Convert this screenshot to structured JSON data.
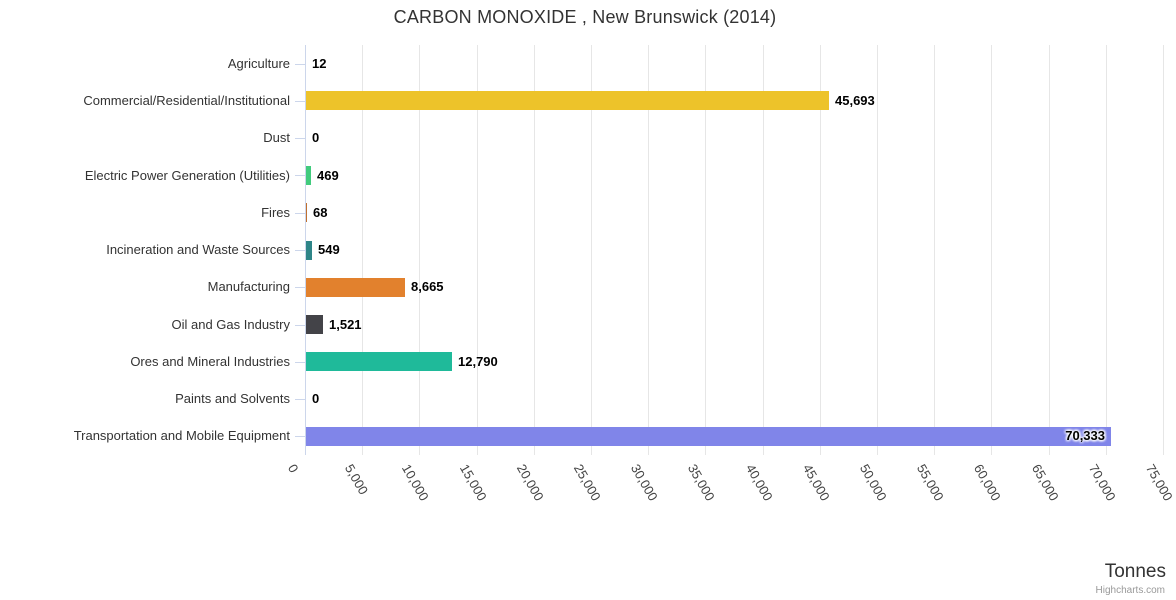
{
  "credit": "Highcharts.com",
  "colors": {
    "grid": "#e6e6e6",
    "axis": "#ccd6eb",
    "text": "#333333",
    "credit": "#999999"
  },
  "chart_data": {
    "type": "bar",
    "title": "CARBON MONOXIDE , New Brunswick (2014)",
    "grid": true,
    "legend": false,
    "value_axis": {
      "title": "Tonnes",
      "min": 0,
      "max": 75000,
      "tick_interval": 5000,
      "tick_labels": [
        "0",
        "5,000",
        "10,000",
        "15,000",
        "20,000",
        "25,000",
        "30,000",
        "35,000",
        "40,000",
        "45,000",
        "50,000",
        "55,000",
        "60,000",
        "65,000",
        "70,000",
        "75,000"
      ]
    },
    "categories": [
      "Agriculture",
      "Commercial/Residential/Institutional",
      "Dust",
      "Electric Power Generation (Utilities)",
      "Fires",
      "Incineration and Waste Sources",
      "Manufacturing",
      "Oil and Gas Industry",
      "Ores and Mineral Industries",
      "Paints and Solvents",
      "Transportation and Mobile Equipment"
    ],
    "values": [
      12,
      45693,
      0,
      469,
      68,
      549,
      8665,
      1521,
      12790,
      0,
      70333
    ],
    "points": [
      {
        "category": "Agriculture",
        "value": 12,
        "label": "12",
        "color": null
      },
      {
        "category": "Commercial/Residential/Institutional",
        "value": 45693,
        "label": "45,693",
        "color": "#EDC32A"
      },
      {
        "category": "Dust",
        "value": 0,
        "label": "0",
        "color": null
      },
      {
        "category": "Electric Power Generation (Utilities)",
        "value": 469,
        "label": "469",
        "color": "#41CB7D"
      },
      {
        "category": "Fires",
        "value": 68,
        "label": "68",
        "color": "#C0702F"
      },
      {
        "category": "Incineration and Waste Sources",
        "value": 549,
        "label": "549",
        "color": "#2E8588"
      },
      {
        "category": "Manufacturing",
        "value": 8665,
        "label": "8,665",
        "color": "#E2812D"
      },
      {
        "category": "Oil and Gas Industry",
        "value": 1521,
        "label": "1,521",
        "color": "#434348"
      },
      {
        "category": "Ores and Mineral Industries",
        "value": 12790,
        "label": "12,790",
        "color": "#1FBA9A"
      },
      {
        "category": "Paints and Solvents",
        "value": 0,
        "label": "0",
        "color": null
      },
      {
        "category": "Transportation and Mobile Equipment",
        "value": 70333,
        "label": "70,333",
        "color": "#8085E9",
        "label_inside": true
      }
    ]
  }
}
